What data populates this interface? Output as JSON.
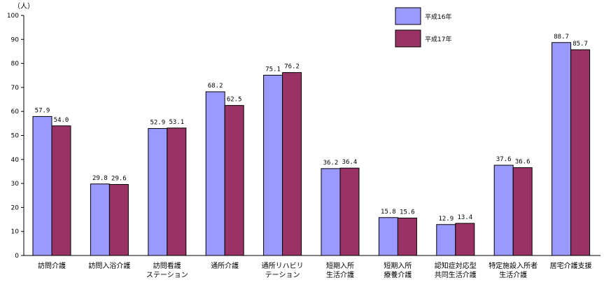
{
  "chart_data": {
    "type": "bar",
    "unit": "（人）",
    "ylim": [
      0,
      100
    ],
    "yticks": [
      0,
      10,
      20,
      30,
      40,
      50,
      60,
      70,
      80,
      90,
      100
    ],
    "grid": false,
    "legend_position": "top-right",
    "categories": [
      [
        "訪問介護"
      ],
      [
        "訪問入浴介護"
      ],
      [
        "訪問看護",
        "ステーション"
      ],
      [
        "通所介護"
      ],
      [
        "通所リハビリ",
        "テーション"
      ],
      [
        "短期入所",
        "生活介護"
      ],
      [
        "短期入所",
        "療養介護"
      ],
      [
        "認知症対応型",
        "共同生活介護"
      ],
      [
        "特定施設入所者",
        "生活介護"
      ],
      [
        "居宅介護支援"
      ]
    ],
    "series": [
      {
        "name": "平成16年",
        "color": "#9999ff",
        "values": [
          57.9,
          29.8,
          52.9,
          68.2,
          75.1,
          36.2,
          15.8,
          12.9,
          37.6,
          88.7
        ],
        "labels": [
          "57.9",
          "29.8",
          "52.9",
          "68.2",
          "75.1",
          "36.2",
          "15.8",
          "12.9",
          "37.6",
          "88.7"
        ]
      },
      {
        "name": "平成17年",
        "color": "#993366",
        "values": [
          54.0,
          29.6,
          53.1,
          62.5,
          76.2,
          36.4,
          15.6,
          13.4,
          36.6,
          85.7
        ],
        "labels": [
          "54.0",
          "29.6",
          "53.1",
          "62.5",
          "76.2",
          "36.4",
          "15.6",
          "13.4",
          "36.6",
          "85.7"
        ]
      }
    ]
  }
}
